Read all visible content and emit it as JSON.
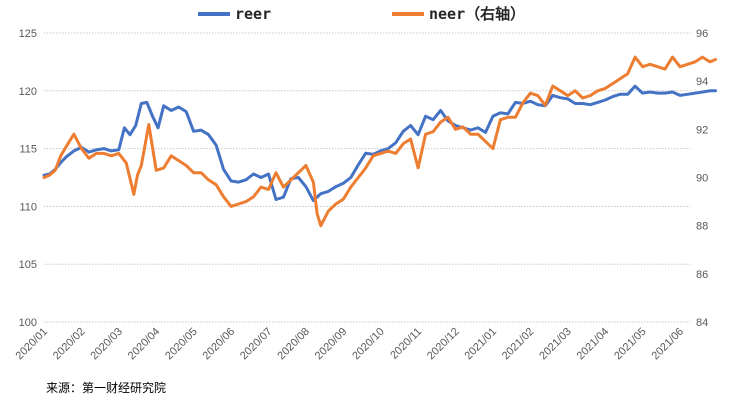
{
  "chart_data": {
    "type": "line",
    "legend_position": "top",
    "grid": true,
    "y_left": {
      "min": 100,
      "max": 125,
      "ticks": [
        100,
        105,
        110,
        115,
        120,
        125
      ]
    },
    "y_right": {
      "min": 84,
      "max": 96,
      "ticks": [
        84,
        86,
        88,
        90,
        92,
        94,
        96
      ]
    },
    "x_ticks": [
      "2020/01",
      "2020/02",
      "2020/03",
      "2020/04",
      "2020/05",
      "2020/06",
      "2020/07",
      "2020/08",
      "2020/09",
      "2020/10",
      "2020/11",
      "2020/12",
      "2021/01",
      "2021/02",
      "2021/03",
      "2021/04",
      "2021/05",
      "2021/06"
    ],
    "series": [
      {
        "name": "reer",
        "axis": "left",
        "color": "#4472C4",
        "x": [
          0,
          0.15,
          0.3,
          0.45,
          0.6,
          0.8,
          1.0,
          1.2,
          1.4,
          1.6,
          1.8,
          2.0,
          2.15,
          2.3,
          2.45,
          2.6,
          2.75,
          2.9,
          3.05,
          3.2,
          3.4,
          3.6,
          3.8,
          4.0,
          4.2,
          4.4,
          4.6,
          4.8,
          5.0,
          5.2,
          5.4,
          5.6,
          5.8,
          6.0,
          6.2,
          6.4,
          6.6,
          6.8,
          7.0,
          7.2,
          7.4,
          7.6,
          7.8,
          8.0,
          8.2,
          8.4,
          8.6,
          8.8,
          9.0,
          9.2,
          9.4,
          9.6,
          9.8,
          10.0,
          10.2,
          10.4,
          10.6,
          10.8,
          11.0,
          11.2,
          11.4,
          11.6,
          11.8,
          12.0,
          12.2,
          12.4,
          12.6,
          12.8,
          13.0,
          13.2,
          13.4,
          13.6,
          13.8,
          14.0,
          14.2,
          14.4,
          14.6,
          14.8,
          15.0,
          15.2,
          15.4,
          15.6,
          15.8,
          16.0,
          16.2,
          16.4,
          16.6,
          16.8,
          17.0,
          17.2,
          17.4,
          17.6,
          17.8,
          17.95
        ],
        "values": [
          112.7,
          112.8,
          113.2,
          113.8,
          114.3,
          114.8,
          115.1,
          114.7,
          114.9,
          115.0,
          114.8,
          114.9,
          116.8,
          116.2,
          117.0,
          118.9,
          119.0,
          117.8,
          116.8,
          118.7,
          118.3,
          118.6,
          118.2,
          116.5,
          116.6,
          116.2,
          115.3,
          113.2,
          112.2,
          112.1,
          112.3,
          112.8,
          112.5,
          112.8,
          110.6,
          110.8,
          112.4,
          112.5,
          111.7,
          110.5,
          111.1,
          111.3,
          111.7,
          112.0,
          112.5,
          113.6,
          114.6,
          114.5,
          114.8,
          115.0,
          115.5,
          116.5,
          117.0,
          116.2,
          117.8,
          117.5,
          118.3,
          117.4,
          117.0,
          116.8,
          116.6,
          116.8,
          116.4,
          117.8,
          118.1,
          118.0,
          119.0,
          118.9,
          119.1,
          118.8,
          118.7,
          119.6,
          119.4,
          119.3,
          118.9,
          118.9,
          118.8,
          119.0,
          119.2,
          119.5,
          119.7,
          119.7,
          120.4,
          119.8,
          119.9,
          119.8,
          119.8,
          119.9,
          119.6,
          119.7,
          119.8,
          119.9,
          120.0,
          120.0
        ]
      },
      {
        "name": "neer（右轴）",
        "axis": "right",
        "color": "#ED7D31",
        "x": [
          0,
          0.15,
          0.3,
          0.45,
          0.6,
          0.8,
          1.0,
          1.2,
          1.4,
          1.6,
          1.8,
          2.0,
          2.2,
          2.4,
          2.5,
          2.6,
          2.8,
          3.0,
          3.2,
          3.4,
          3.6,
          3.8,
          4.0,
          4.2,
          4.4,
          4.6,
          4.8,
          5.0,
          5.2,
          5.4,
          5.6,
          5.8,
          6.0,
          6.2,
          6.4,
          6.6,
          6.8,
          7.0,
          7.2,
          7.3,
          7.4,
          7.6,
          7.8,
          8.0,
          8.2,
          8.4,
          8.6,
          8.8,
          9.0,
          9.2,
          9.4,
          9.6,
          9.8,
          10.0,
          10.2,
          10.4,
          10.6,
          10.8,
          11.0,
          11.2,
          11.4,
          11.6,
          11.8,
          12.0,
          12.2,
          12.4,
          12.6,
          12.8,
          13.0,
          13.2,
          13.4,
          13.6,
          13.8,
          14.0,
          14.2,
          14.4,
          14.6,
          14.8,
          15.0,
          15.2,
          15.4,
          15.6,
          15.8,
          16.0,
          16.2,
          16.4,
          16.6,
          16.8,
          17.0,
          17.2,
          17.4,
          17.6,
          17.8,
          17.95
        ],
        "values": [
          90.0,
          90.1,
          90.3,
          90.9,
          91.3,
          91.8,
          91.2,
          90.8,
          91.0,
          91.0,
          90.9,
          91.0,
          90.6,
          89.3,
          90.1,
          90.5,
          92.2,
          90.3,
          90.4,
          90.9,
          90.7,
          90.5,
          90.2,
          90.2,
          89.9,
          89.7,
          89.2,
          88.8,
          88.9,
          89.0,
          89.2,
          89.6,
          89.5,
          90.2,
          89.6,
          89.9,
          90.2,
          90.5,
          89.8,
          88.5,
          88.0,
          88.6,
          88.9,
          89.1,
          89.6,
          90.0,
          90.4,
          90.9,
          91.0,
          91.1,
          91.0,
          91.4,
          91.6,
          90.4,
          91.8,
          91.9,
          92.3,
          92.5,
          92.0,
          92.1,
          91.8,
          91.8,
          91.5,
          91.2,
          92.4,
          92.5,
          92.5,
          93.1,
          93.5,
          93.4,
          93.0,
          93.8,
          93.6,
          93.4,
          93.6,
          93.3,
          93.4,
          93.6,
          93.7,
          93.9,
          94.1,
          94.3,
          95.0,
          94.6,
          94.7,
          94.6,
          94.5,
          95.0,
          94.6,
          94.7,
          94.8,
          95.0,
          94.8,
          94.9
        ]
      }
    ]
  },
  "source_note": "来源：第一财经研究院"
}
